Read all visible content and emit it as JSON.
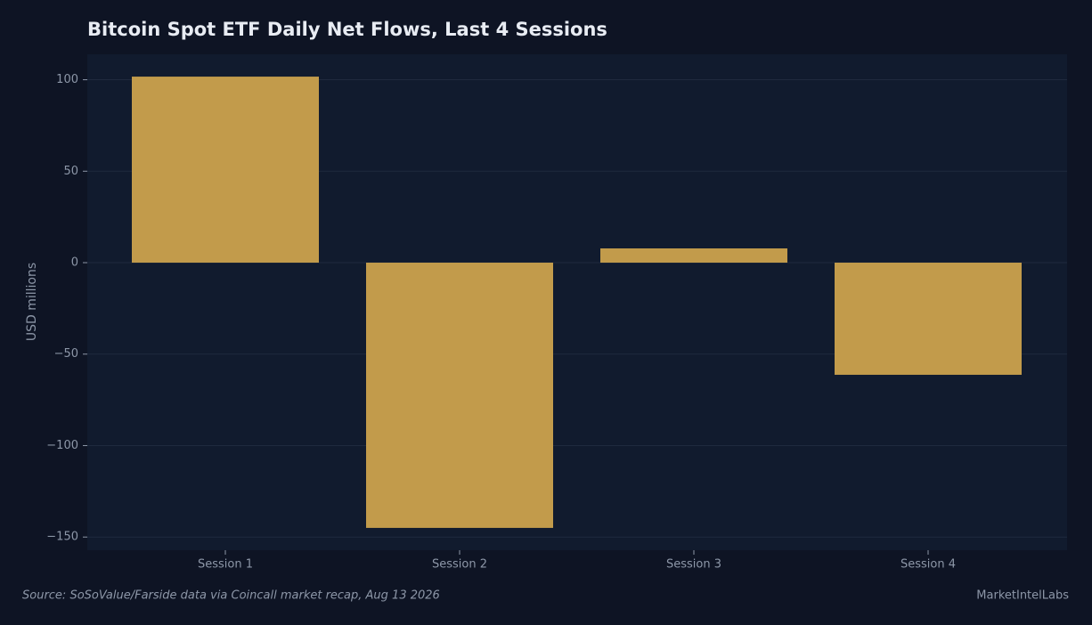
{
  "chart_data": {
    "type": "bar",
    "title": "Bitcoin Spot ETF Daily Net Flows, Last 4 Sessions",
    "y_label": "USD millions",
    "categories": [
      "Session 1",
      "Session 2",
      "Session 3",
      "Session 4"
    ],
    "values": [
      101.7,
      -145,
      7.8,
      -61.3
    ],
    "color": "#c29b4b",
    "ylim": [
      -157.2,
      113.9
    ],
    "yticks": [
      {
        "value": -150,
        "label": "−150"
      },
      {
        "value": -100,
        "label": "−100"
      },
      {
        "value": -50,
        "label": "−50"
      },
      0,
      50,
      100
    ],
    "grid": true,
    "source": "Source: SoSoValue/Farside data via Coincall market recap, Aug 13 2026",
    "brand": "MarketIntelLabs"
  }
}
